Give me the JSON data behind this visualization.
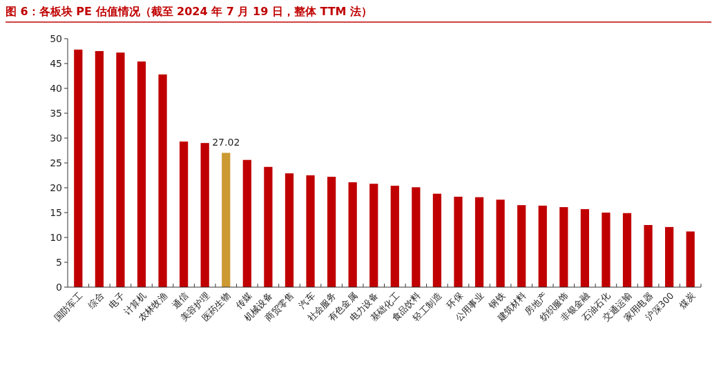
{
  "chart_data": {
    "type": "bar",
    "title": "图 6：各板块 PE 估值情况（截至 2024 年 7 月 19 日，整体 TTM 法）",
    "categories": [
      "国防军工",
      "综合",
      "电子",
      "计算机",
      "农林牧渔",
      "通信",
      "美容护理",
      "医药生物",
      "传媒",
      "机械设备",
      "商贸零售",
      "汽车",
      "社会服务",
      "有色金属",
      "电力设备",
      "基础化工",
      "食品饮料",
      "轻工制造",
      "环保",
      "公用事业",
      "钢铁",
      "建筑材料",
      "房地产",
      "纺织服饰",
      "非银金融",
      "石油石化",
      "交通运输",
      "家用电器",
      "沪深300",
      "煤炭"
    ],
    "values": [
      47.8,
      47.5,
      47.2,
      45.4,
      42.8,
      29.3,
      29.0,
      27.02,
      25.6,
      24.2,
      22.9,
      22.5,
      22.2,
      21.1,
      20.8,
      20.4,
      20.1,
      18.8,
      18.2,
      18.1,
      17.6,
      16.5,
      16.4,
      16.1,
      15.7,
      15.0,
      14.9,
      12.5,
      12.1,
      11.2
    ],
    "colors": [
      "#c00000",
      "#c00000",
      "#c00000",
      "#c00000",
      "#c00000",
      "#c00000",
      "#c00000",
      "#cc9933",
      "#c00000",
      "#c00000",
      "#c00000",
      "#c00000",
      "#c00000",
      "#c00000",
      "#c00000",
      "#c00000",
      "#c00000",
      "#c00000",
      "#c00000",
      "#c00000",
      "#c00000",
      "#c00000",
      "#c00000",
      "#c00000",
      "#c00000",
      "#c00000",
      "#c00000",
      "#c00000",
      "#c00000",
      "#c00000"
    ],
    "value_labels": [
      null,
      null,
      null,
      null,
      null,
      null,
      null,
      "27.02",
      null,
      null,
      null,
      null,
      null,
      null,
      null,
      null,
      null,
      null,
      null,
      null,
      null,
      null,
      null,
      null,
      null,
      null,
      null,
      null,
      null,
      null
    ],
    "ylim": [
      0,
      50
    ],
    "yticks": [
      0,
      5,
      10,
      15,
      20,
      25,
      30,
      35,
      40,
      45,
      50
    ],
    "grid": false
  }
}
